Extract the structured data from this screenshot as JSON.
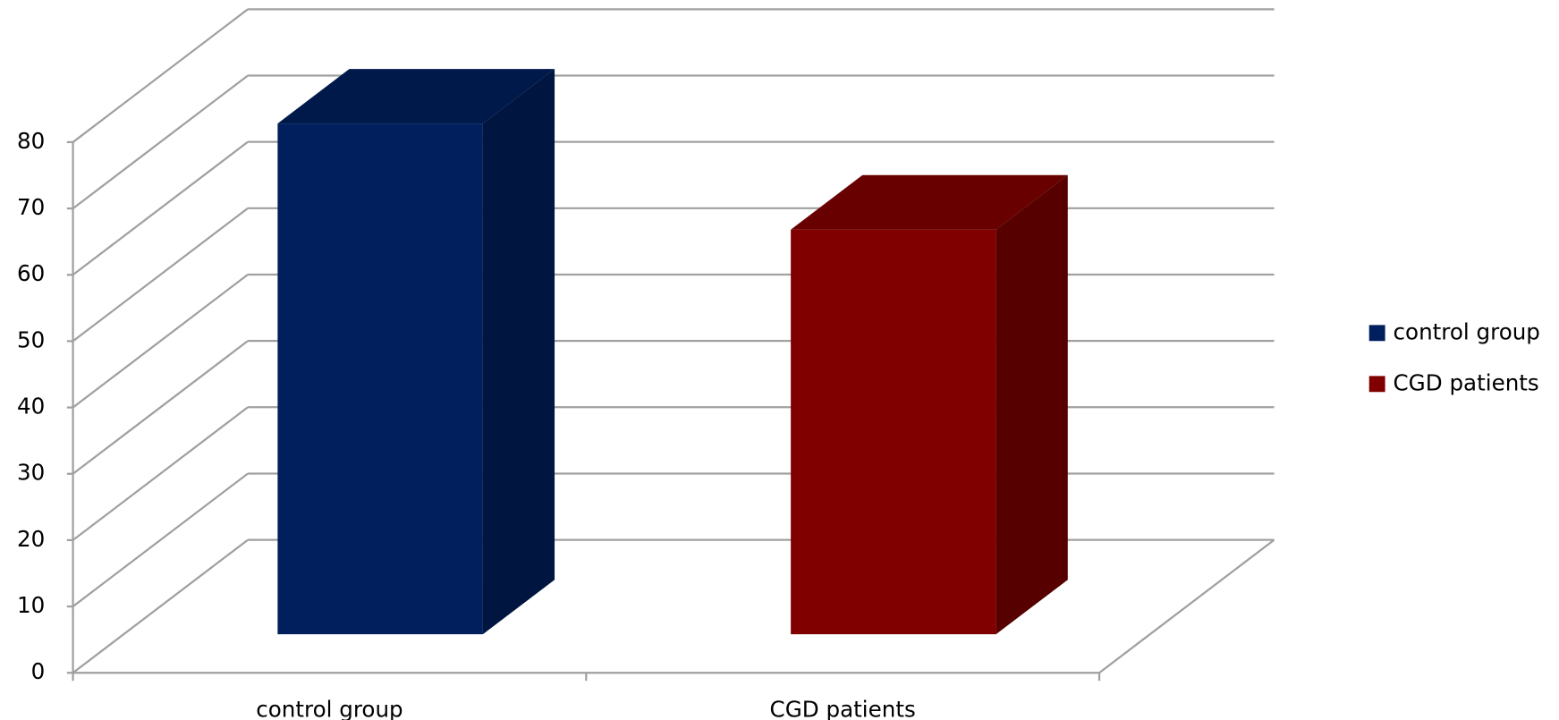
{
  "chart_data": {
    "type": "bar",
    "categories": [
      "control group",
      "CGD patients"
    ],
    "series": [
      {
        "name": "control group",
        "color": "#001f5c",
        "values": [
          77,
          null
        ]
      },
      {
        "name": "CGD patients",
        "color": "#800000",
        "values": [
          null,
          61
        ]
      }
    ],
    "ylim": [
      0,
      80
    ],
    "yticks": [
      0,
      10,
      20,
      30,
      40,
      50,
      60,
      70,
      80
    ],
    "grid": true,
    "legend": "right"
  }
}
